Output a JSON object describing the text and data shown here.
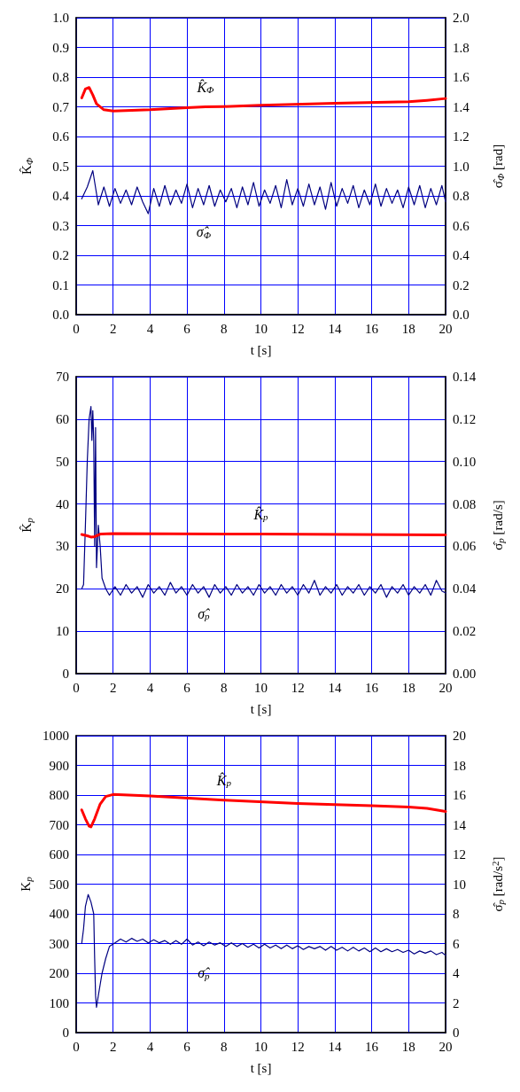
{
  "chart_data": [
    {
      "type": "line",
      "xlabel": "t [s]",
      "ylabel": "K̂$_{Φ}$",
      "y2label": "σ̂$_{Φ}$ [rad]",
      "grid": true,
      "line_style": "solid",
      "xlim": [
        0,
        20
      ],
      "xticks": [
        0,
        2,
        4,
        6,
        8,
        10,
        12,
        14,
        16,
        18,
        20
      ],
      "ylim": [
        0,
        1
      ],
      "yticks": [
        {
          "value": 0,
          "label": "0.0"
        },
        0.1,
        0.2,
        0.3,
        0.4,
        0.5,
        0.6,
        0.7,
        0.8,
        0.9,
        {
          "value": 1,
          "label": "1.0"
        }
      ],
      "y2lim": [
        0,
        2
      ],
      "y2ticks": [
        {
          "value": 0,
          "label": "0.0"
        },
        0.2,
        0.4,
        0.6,
        0.8,
        {
          "value": 1,
          "label": "1.0"
        },
        1.2,
        1.4,
        1.6,
        1.8,
        {
          "value": 2,
          "label": "2.0"
        }
      ],
      "series": [
        {
          "name": "K̂$_{Φ}$",
          "color": "#ff0000",
          "x": [
            0.3,
            0.5,
            0.7,
            0.9,
            1.1,
            1.5,
            2,
            4,
            6,
            7,
            8,
            10,
            14,
            18,
            19,
            20
          ],
          "values": [
            0.73,
            0.76,
            0.765,
            0.74,
            0.71,
            0.69,
            0.686,
            0.69,
            0.697,
            0.7,
            0.701,
            0.705,
            0.712,
            0.717,
            0.722,
            0.728
          ]
        },
        {
          "name": "σ̂$_{Φ}$",
          "color": "#000080",
          "axis": "y2",
          "x": [
            0.3,
            0.6,
            0.9,
            1.2,
            1.5,
            1.8,
            2.1,
            2.4,
            2.7,
            3.0,
            3.3,
            3.6,
            3.9,
            4.2,
            4.5,
            4.8,
            5.1,
            5.4,
            5.7,
            6.0,
            6.3,
            6.6,
            6.9,
            7.2,
            7.5,
            7.8,
            8.1,
            8.4,
            8.7,
            9.0,
            9.3,
            9.6,
            9.9,
            10.2,
            10.5,
            10.8,
            11.1,
            11.4,
            11.7,
            12.0,
            12.3,
            12.6,
            12.9,
            13.2,
            13.5,
            13.8,
            14.1,
            14.4,
            14.7,
            15.0,
            15.3,
            15.6,
            15.9,
            16.2,
            16.5,
            16.8,
            17.1,
            17.4,
            17.7,
            18.0,
            18.3,
            18.6,
            18.9,
            19.2,
            19.5,
            19.8,
            20.0
          ],
          "values": [
            0.78,
            0.86,
            0.97,
            0.74,
            0.86,
            0.73,
            0.85,
            0.75,
            0.84,
            0.74,
            0.86,
            0.76,
            0.68,
            0.85,
            0.73,
            0.87,
            0.74,
            0.84,
            0.75,
            0.88,
            0.72,
            0.85,
            0.74,
            0.87,
            0.73,
            0.84,
            0.76,
            0.85,
            0.72,
            0.86,
            0.74,
            0.89,
            0.73,
            0.84,
            0.75,
            0.87,
            0.72,
            0.91,
            0.74,
            0.85,
            0.73,
            0.88,
            0.74,
            0.86,
            0.71,
            0.89,
            0.73,
            0.85,
            0.75,
            0.87,
            0.72,
            0.84,
            0.74,
            0.88,
            0.73,
            0.85,
            0.75,
            0.84,
            0.72,
            0.86,
            0.74,
            0.87,
            0.72,
            0.85,
            0.74,
            0.87,
            0.76
          ]
        }
      ]
    },
    {
      "type": "line",
      "xlabel": "t [s]",
      "ylabel": "K̂$_{p}$",
      "y2label": "σ̂$_{p}$ [rad/s]",
      "grid": true,
      "line_style": "solid",
      "xlim": [
        0,
        20
      ],
      "xticks": [
        0,
        2,
        4,
        6,
        8,
        10,
        12,
        14,
        16,
        18,
        20
      ],
      "ylim": [
        0,
        70
      ],
      "yticks": [
        0,
        10,
        20,
        30,
        40,
        50,
        60,
        70
      ],
      "y2lim": [
        0,
        0.14
      ],
      "y2ticks": [
        {
          "value": 0,
          "label": "0.00"
        },
        {
          "value": 0.02,
          "label": "0.02"
        },
        {
          "value": 0.04,
          "label": "0.04"
        },
        {
          "value": 0.06,
          "label": "0.06"
        },
        {
          "value": 0.08,
          "label": "0.08"
        },
        {
          "value": 0.1,
          "label": "0.10"
        },
        {
          "value": 0.12,
          "label": "0.12"
        },
        {
          "value": 0.14,
          "label": "0.14"
        }
      ],
      "series": [
        {
          "name": "K̂$_{p}$",
          "color": "#ff0000",
          "x": [
            0.3,
            0.6,
            0.8,
            1.0,
            1.3,
            2,
            10,
            20
          ],
          "values": [
            32.8,
            32.5,
            32.2,
            32.3,
            32.9,
            33,
            32.9,
            32.7
          ]
        },
        {
          "name": "σ̂$_{p}$",
          "color": "#000080",
          "axis": "y2",
          "x": [
            0.3,
            0.4,
            0.5,
            0.6,
            0.7,
            0.8,
            0.85,
            0.9,
            0.95,
            1.0,
            1.05,
            1.1,
            1.2,
            1.3,
            1.4,
            1.6,
            1.8,
            2.1,
            2.4,
            2.7,
            3.0,
            3.3,
            3.6,
            3.9,
            4.2,
            4.5,
            4.8,
            5.1,
            5.4,
            5.7,
            6.0,
            6.3,
            6.6,
            6.9,
            7.2,
            7.5,
            7.8,
            8.1,
            8.4,
            8.7,
            9.0,
            9.3,
            9.6,
            9.9,
            10.2,
            10.5,
            10.8,
            11.1,
            11.4,
            11.7,
            12.0,
            12.3,
            12.6,
            12.9,
            13.2,
            13.5,
            13.8,
            14.1,
            14.4,
            14.7,
            15.0,
            15.3,
            15.6,
            15.9,
            16.2,
            16.5,
            16.8,
            17.1,
            17.4,
            17.7,
            18.0,
            18.3,
            18.6,
            18.9,
            19.2,
            19.5,
            19.8,
            20.0
          ],
          "values": [
            0.04,
            0.042,
            0.07,
            0.1,
            0.12,
            0.126,
            0.11,
            0.124,
            0.11,
            0.06,
            0.116,
            0.05,
            0.07,
            0.06,
            0.045,
            0.04,
            0.037,
            0.041,
            0.037,
            0.042,
            0.038,
            0.041,
            0.036,
            0.042,
            0.038,
            0.041,
            0.037,
            0.043,
            0.038,
            0.041,
            0.037,
            0.042,
            0.038,
            0.041,
            0.036,
            0.042,
            0.038,
            0.041,
            0.037,
            0.042,
            0.038,
            0.041,
            0.037,
            0.042,
            0.038,
            0.041,
            0.037,
            0.042,
            0.038,
            0.041,
            0.037,
            0.042,
            0.038,
            0.044,
            0.037,
            0.041,
            0.038,
            0.042,
            0.037,
            0.041,
            0.038,
            0.042,
            0.037,
            0.041,
            0.038,
            0.042,
            0.036,
            0.041,
            0.038,
            0.042,
            0.037,
            0.041,
            0.038,
            0.042,
            0.037,
            0.044,
            0.039,
            0.038
          ]
        }
      ]
    },
    {
      "type": "line",
      "xlabel": "t [s]",
      "ylabel": "K$_{p}$",
      "y2label": "σ̂$_{p}$ [rad/s$^{2}$]",
      "grid": true,
      "line_style": "solid",
      "xlim": [
        0,
        20
      ],
      "xticks": [
        0,
        2,
        4,
        6,
        8,
        10,
        12,
        14,
        16,
        18,
        20
      ],
      "ylim": [
        0,
        1000
      ],
      "yticks": [
        0,
        100,
        200,
        300,
        400,
        500,
        600,
        700,
        800,
        900,
        1000
      ],
      "y2lim": [
        0,
        20
      ],
      "y2ticks": [
        0,
        2,
        4,
        6,
        8,
        10,
        12,
        14,
        16,
        18,
        20
      ],
      "series": [
        {
          "name": "K̂$_{p}$",
          "color": "#ff0000",
          "x": [
            0.3,
            0.5,
            0.7,
            0.8,
            1.0,
            1.3,
            1.6,
            2,
            4,
            8,
            12,
            16,
            18,
            19,
            20
          ],
          "values": [
            750,
            720,
            695,
            693,
            720,
            770,
            795,
            802,
            797,
            783,
            772,
            764,
            760,
            755,
            745
          ]
        },
        {
          "name": "σ̂$_{p}$",
          "color": "#000080",
          "axis": "y2",
          "x": [
            0.3,
            0.4,
            0.5,
            0.65,
            0.8,
            0.95,
            1.0,
            1.05,
            1.1,
            1.2,
            1.4,
            1.6,
            1.8,
            2.1,
            2.4,
            2.7,
            3.0,
            3.3,
            3.6,
            3.9,
            4.2,
            4.5,
            4.8,
            5.1,
            5.4,
            5.7,
            6.0,
            6.3,
            6.6,
            6.9,
            7.2,
            7.5,
            7.8,
            8.1,
            8.4,
            8.7,
            9.0,
            9.3,
            9.6,
            9.9,
            10.2,
            10.5,
            10.8,
            11.1,
            11.4,
            11.7,
            12.0,
            12.3,
            12.6,
            12.9,
            13.2,
            13.5,
            13.8,
            14.1,
            14.4,
            14.7,
            15.0,
            15.3,
            15.6,
            15.9,
            16.2,
            16.5,
            16.8,
            17.1,
            17.4,
            17.7,
            18.0,
            18.3,
            18.6,
            18.9,
            19.2,
            19.5,
            19.8,
            20.0
          ],
          "values": [
            6,
            7,
            8.5,
            9.3,
            8.8,
            8,
            5,
            2.5,
            1.7,
            2.5,
            4,
            5,
            5.8,
            6.05,
            6.3,
            6.1,
            6.35,
            6.15,
            6.3,
            6.05,
            6.25,
            6.05,
            6.2,
            5.95,
            6.2,
            5.95,
            6.3,
            5.9,
            6.1,
            5.85,
            6.1,
            5.9,
            6.05,
            5.8,
            6.05,
            5.8,
            6.0,
            5.75,
            5.95,
            5.7,
            5.95,
            5.7,
            5.9,
            5.65,
            5.9,
            5.65,
            5.85,
            5.6,
            5.8,
            5.65,
            5.8,
            5.55,
            5.8,
            5.55,
            5.75,
            5.5,
            5.75,
            5.5,
            5.7,
            5.45,
            5.7,
            5.45,
            5.65,
            5.45,
            5.6,
            5.4,
            5.55,
            5.3,
            5.5,
            5.35,
            5.5,
            5.25,
            5.4,
            5.2
          ]
        }
      ]
    }
  ]
}
